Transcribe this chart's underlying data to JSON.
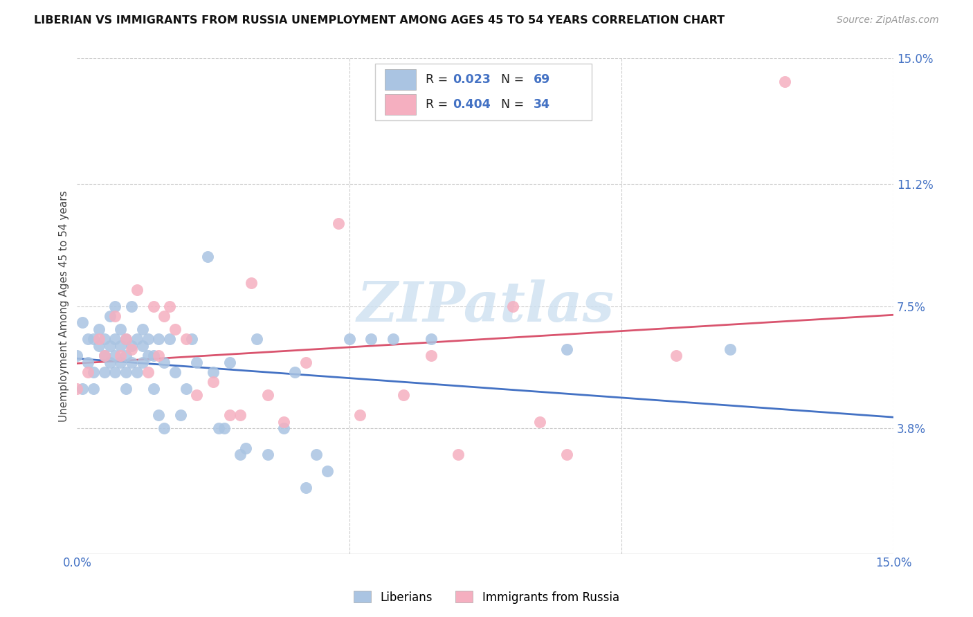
{
  "title": "LIBERIAN VS IMMIGRANTS FROM RUSSIA UNEMPLOYMENT AMONG AGES 45 TO 54 YEARS CORRELATION CHART",
  "source": "Source: ZipAtlas.com",
  "ylabel": "Unemployment Among Ages 45 to 54 years",
  "xlim": [
    0.0,
    0.15
  ],
  "ylim": [
    0.0,
    0.15
  ],
  "xtick_positions": [
    0.0,
    0.05,
    0.1,
    0.15
  ],
  "xtick_labels": [
    "0.0%",
    "",
    "",
    "15.0%"
  ],
  "ytick_positions": [
    0.038,
    0.075,
    0.112,
    0.15
  ],
  "ytick_labels": [
    "3.8%",
    "7.5%",
    "11.2%",
    "15.0%"
  ],
  "liberian_R": 0.023,
  "liberian_N": 69,
  "russia_R": 0.404,
  "russia_N": 34,
  "liberian_scatter_color": "#aac4e2",
  "liberian_line_color": "#4472c4",
  "russia_scatter_color": "#f5afc0",
  "russia_line_color": "#d9546e",
  "watermark_color": "#cde0f0",
  "background_color": "#ffffff",
  "grid_color": "#cccccc",
  "tick_color": "#4472c4",
  "title_color": "#111111",
  "source_color": "#999999",
  "ylabel_color": "#444444",
  "liberian_x": [
    0.0,
    0.001,
    0.001,
    0.002,
    0.002,
    0.003,
    0.003,
    0.003,
    0.004,
    0.004,
    0.005,
    0.005,
    0.005,
    0.006,
    0.006,
    0.006,
    0.007,
    0.007,
    0.007,
    0.007,
    0.008,
    0.008,
    0.008,
    0.009,
    0.009,
    0.009,
    0.009,
    0.01,
    0.01,
    0.01,
    0.011,
    0.011,
    0.012,
    0.012,
    0.012,
    0.013,
    0.013,
    0.014,
    0.014,
    0.015,
    0.015,
    0.016,
    0.016,
    0.017,
    0.018,
    0.019,
    0.02,
    0.021,
    0.022,
    0.024,
    0.025,
    0.026,
    0.027,
    0.028,
    0.03,
    0.031,
    0.033,
    0.035,
    0.038,
    0.04,
    0.042,
    0.044,
    0.046,
    0.05,
    0.054,
    0.058,
    0.065,
    0.09,
    0.12
  ],
  "liberian_y": [
    0.06,
    0.05,
    0.07,
    0.058,
    0.065,
    0.055,
    0.065,
    0.05,
    0.063,
    0.068,
    0.06,
    0.055,
    0.065,
    0.058,
    0.063,
    0.072,
    0.055,
    0.06,
    0.065,
    0.075,
    0.058,
    0.063,
    0.068,
    0.055,
    0.06,
    0.065,
    0.05,
    0.058,
    0.063,
    0.075,
    0.055,
    0.065,
    0.058,
    0.063,
    0.068,
    0.06,
    0.065,
    0.05,
    0.06,
    0.042,
    0.065,
    0.038,
    0.058,
    0.065,
    0.055,
    0.042,
    0.05,
    0.065,
    0.058,
    0.09,
    0.055,
    0.038,
    0.038,
    0.058,
    0.03,
    0.032,
    0.065,
    0.03,
    0.038,
    0.055,
    0.02,
    0.03,
    0.025,
    0.065,
    0.065,
    0.065,
    0.065,
    0.062,
    0.062
  ],
  "russia_x": [
    0.0,
    0.002,
    0.004,
    0.005,
    0.007,
    0.008,
    0.009,
    0.01,
    0.011,
    0.013,
    0.014,
    0.015,
    0.016,
    0.017,
    0.018,
    0.02,
    0.022,
    0.025,
    0.028,
    0.03,
    0.032,
    0.035,
    0.038,
    0.042,
    0.048,
    0.052,
    0.06,
    0.065,
    0.07,
    0.08,
    0.085,
    0.09,
    0.11,
    0.13
  ],
  "russia_y": [
    0.05,
    0.055,
    0.065,
    0.06,
    0.072,
    0.06,
    0.065,
    0.062,
    0.08,
    0.055,
    0.075,
    0.06,
    0.072,
    0.075,
    0.068,
    0.065,
    0.048,
    0.052,
    0.042,
    0.042,
    0.082,
    0.048,
    0.04,
    0.058,
    0.1,
    0.042,
    0.048,
    0.06,
    0.03,
    0.075,
    0.04,
    0.03,
    0.06,
    0.143
  ]
}
